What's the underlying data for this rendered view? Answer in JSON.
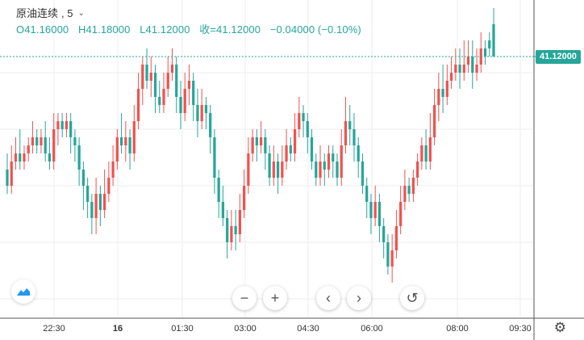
{
  "legend": {
    "symbol": "原油连续",
    "interval": ", 5",
    "open": "O41.16000",
    "high": "H41.18000",
    "low": "L41.12000",
    "close": "收=41.12000",
    "change": "−0.04000 (−0.10%)"
  },
  "price_label": "41.12000",
  "colors": {
    "up": "#ef5350",
    "down": "#26a69a",
    "grid": "#eeeeee"
  },
  "icons": {
    "logo": "tradingview-logo-icon",
    "settings": "gear-icon"
  },
  "chart_data": {
    "type": "candlestick",
    "x_ticks": [
      "22:30",
      "16",
      "01:30",
      "03:00",
      "04:30",
      "06:00",
      "08:00",
      "09:30"
    ],
    "y_range": [
      40.83,
      41.15
    ],
    "last_price": 41.12,
    "candles": [
      [
        40.98,
        40.96,
        41.0,
        40.95
      ],
      [
        40.96,
        40.99,
        41.01,
        40.95
      ],
      [
        40.99,
        41.0,
        41.02,
        40.98
      ],
      [
        41.0,
        40.99,
        41.03,
        40.98
      ],
      [
        40.99,
        41.0,
        41.01,
        40.98
      ],
      [
        41.0,
        41.01,
        41.02,
        40.99
      ],
      [
        41.01,
        41.02,
        41.04,
        41.0
      ],
      [
        41.02,
        41.01,
        41.03,
        41.0
      ],
      [
        41.01,
        41.02,
        41.03,
        41.0
      ],
      [
        41.02,
        41.0,
        41.04,
        40.99
      ],
      [
        41.0,
        40.99,
        41.02,
        40.98
      ],
      [
        40.99,
        41.03,
        41.05,
        40.98
      ],
      [
        41.03,
        41.04,
        41.05,
        41.01
      ],
      [
        41.04,
        41.03,
        41.05,
        41.02
      ],
      [
        41.03,
        41.04,
        41.05,
        41.02
      ],
      [
        41.04,
        41.02,
        41.05,
        41.0
      ],
      [
        41.02,
        41.01,
        41.03,
        40.99
      ],
      [
        41.01,
        40.98,
        41.02,
        40.96
      ],
      [
        40.98,
        40.96,
        40.99,
        40.93
      ],
      [
        40.96,
        40.94,
        40.97,
        40.92
      ],
      [
        40.94,
        40.92,
        40.95,
        40.9
      ],
      [
        40.92,
        40.95,
        40.97,
        40.9
      ],
      [
        40.95,
        40.93,
        40.96,
        40.91
      ],
      [
        40.93,
        40.95,
        40.98,
        40.92
      ],
      [
        40.95,
        40.97,
        40.99,
        40.94
      ],
      [
        40.97,
        40.99,
        41.01,
        40.96
      ],
      [
        40.99,
        41.02,
        41.03,
        40.98
      ],
      [
        41.02,
        41.01,
        41.05,
        41.0
      ],
      [
        41.01,
        41.02,
        41.04,
        40.99
      ],
      [
        41.02,
        41.0,
        41.03,
        40.98
      ],
      [
        41.0,
        41.04,
        41.06,
        40.99
      ],
      [
        41.04,
        41.08,
        41.1,
        41.03
      ],
      [
        41.08,
        41.11,
        41.12,
        41.06
      ],
      [
        41.11,
        41.09,
        41.13,
        41.08
      ],
      [
        41.09,
        41.1,
        41.12,
        41.07
      ],
      [
        41.1,
        41.07,
        41.11,
        41.05
      ],
      [
        41.07,
        41.06,
        41.09,
        41.05
      ],
      [
        41.06,
        41.08,
        41.1,
        41.05
      ],
      [
        41.08,
        41.1,
        41.12,
        41.07
      ],
      [
        41.1,
        41.11,
        41.13,
        41.09
      ],
      [
        41.11,
        41.07,
        41.12,
        41.05
      ],
      [
        41.07,
        41.05,
        41.09,
        41.03
      ],
      [
        41.05,
        41.08,
        41.1,
        41.04
      ],
      [
        41.08,
        41.09,
        41.11,
        41.06
      ],
      [
        41.09,
        41.06,
        41.1,
        41.04
      ],
      [
        41.06,
        41.04,
        41.08,
        41.02
      ],
      [
        41.04,
        41.06,
        41.08,
        41.03
      ],
      [
        41.06,
        41.05,
        41.07,
        41.03
      ],
      [
        41.05,
        41.02,
        41.06,
        41.0
      ],
      [
        41.02,
        40.97,
        41.03,
        40.95
      ],
      [
        40.97,
        40.94,
        40.98,
        40.92
      ],
      [
        40.94,
        40.92,
        40.96,
        40.91
      ],
      [
        40.92,
        40.89,
        40.93,
        40.87
      ],
      [
        40.89,
        40.91,
        40.93,
        40.88
      ],
      [
        40.91,
        40.9,
        40.93,
        40.88
      ],
      [
        40.9,
        40.93,
        40.95,
        40.89
      ],
      [
        40.93,
        40.96,
        40.98,
        40.92
      ],
      [
        40.96,
        41.0,
        41.02,
        40.95
      ],
      [
        41.0,
        41.02,
        41.03,
        40.99
      ],
      [
        41.02,
        41.01,
        41.03,
        40.99
      ],
      [
        41.01,
        41.02,
        41.04,
        41.0
      ],
      [
        41.02,
        41.0,
        41.03,
        40.98
      ],
      [
        41.0,
        40.97,
        41.01,
        40.96
      ],
      [
        40.97,
        40.99,
        41.01,
        40.96
      ],
      [
        40.99,
        40.97,
        41.0,
        40.95
      ],
      [
        40.97,
        40.99,
        41.01,
        40.96
      ],
      [
        40.99,
        41.01,
        41.03,
        40.98
      ],
      [
        41.01,
        41.0,
        41.02,
        40.99
      ],
      [
        41.0,
        41.03,
        41.05,
        40.99
      ],
      [
        41.03,
        41.05,
        41.07,
        41.02
      ],
      [
        41.05,
        41.04,
        41.06,
        41.02
      ],
      [
        41.04,
        41.02,
        41.05,
        41.0
      ],
      [
        41.02,
        40.99,
        41.03,
        40.98
      ],
      [
        40.99,
        40.97,
        41.0,
        40.96
      ],
      [
        40.97,
        40.99,
        41.01,
        40.96
      ],
      [
        40.99,
        40.98,
        41.0,
        40.96
      ],
      [
        40.98,
        41.0,
        41.01,
        40.97
      ],
      [
        41.0,
        40.99,
        41.01,
        40.97
      ],
      [
        40.99,
        40.97,
        41.0,
        40.96
      ],
      [
        40.97,
        41.01,
        41.03,
        40.96
      ],
      [
        41.01,
        41.04,
        41.07,
        41.0
      ],
      [
        41.04,
        41.03,
        41.06,
        41.01
      ],
      [
        41.03,
        41.01,
        41.05,
        40.99
      ],
      [
        41.01,
        40.99,
        41.02,
        40.97
      ],
      [
        40.99,
        40.96,
        41.0,
        40.95
      ],
      [
        40.96,
        40.94,
        40.97,
        40.92
      ],
      [
        40.94,
        40.92,
        40.95,
        40.9
      ],
      [
        40.92,
        40.94,
        40.96,
        40.91
      ],
      [
        40.94,
        40.91,
        40.95,
        40.89
      ],
      [
        40.91,
        40.89,
        40.92,
        40.87
      ],
      [
        40.89,
        40.86,
        40.9,
        40.85
      ],
      [
        40.86,
        40.88,
        40.9,
        40.84
      ],
      [
        40.88,
        40.91,
        40.93,
        40.87
      ],
      [
        40.91,
        40.94,
        40.96,
        40.9
      ],
      [
        40.94,
        40.96,
        40.98,
        40.93
      ],
      [
        40.96,
        40.95,
        40.97,
        40.94
      ],
      [
        40.95,
        40.97,
        40.98,
        40.94
      ],
      [
        40.97,
        40.99,
        41.0,
        40.96
      ],
      [
        40.99,
        41.01,
        41.02,
        40.98
      ],
      [
        41.01,
        40.99,
        41.03,
        40.98
      ],
      [
        40.99,
        41.02,
        41.05,
        40.98
      ],
      [
        41.02,
        41.06,
        41.08,
        41.01
      ],
      [
        41.06,
        41.08,
        41.1,
        41.04
      ],
      [
        41.08,
        41.07,
        41.11,
        41.05
      ],
      [
        41.07,
        41.09,
        41.11,
        41.06
      ],
      [
        41.09,
        41.1,
        41.12,
        41.08
      ],
      [
        41.1,
        41.11,
        41.13,
        41.09
      ],
      [
        41.11,
        41.1,
        41.13,
        41.08
      ],
      [
        41.1,
        41.11,
        41.14,
        41.09
      ],
      [
        41.11,
        41.12,
        41.14,
        41.1
      ],
      [
        41.12,
        41.1,
        41.14,
        41.08
      ],
      [
        41.1,
        41.11,
        41.13,
        41.09
      ],
      [
        41.11,
        41.13,
        41.15,
        41.1
      ],
      [
        41.13,
        41.12,
        41.14,
        41.11
      ],
      [
        41.14,
        41.13,
        41.15,
        41.12
      ],
      [
        41.16,
        41.12,
        41.18,
        41.12
      ]
    ]
  }
}
